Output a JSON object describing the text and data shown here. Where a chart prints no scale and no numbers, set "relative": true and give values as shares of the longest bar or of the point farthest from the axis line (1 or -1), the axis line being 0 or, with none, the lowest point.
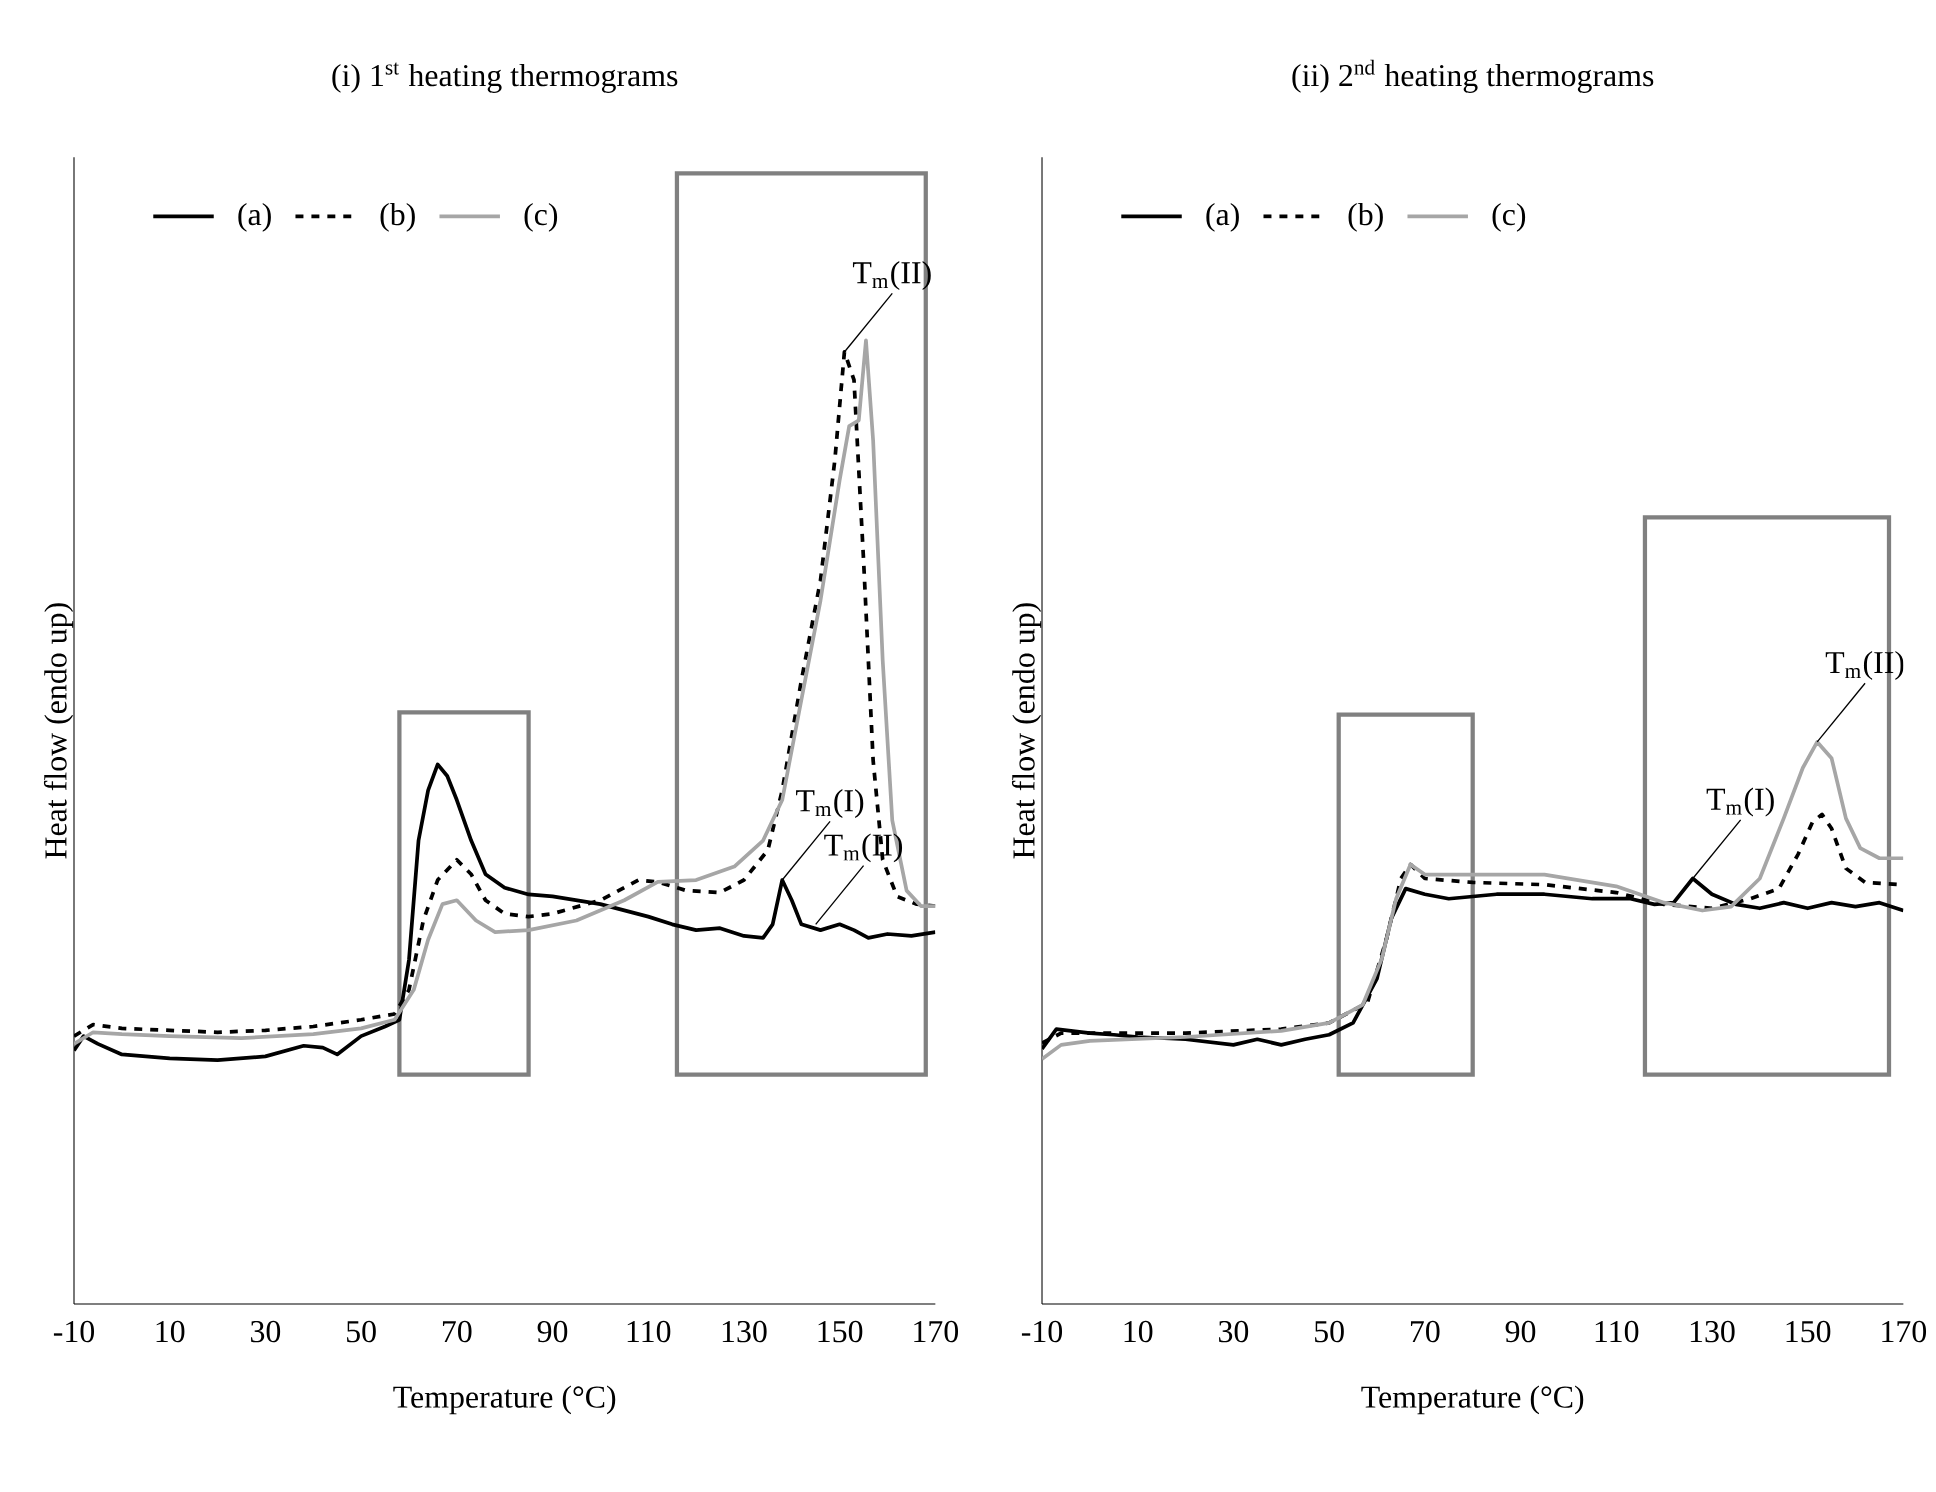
{
  "chart_data": [
    {
      "type": "line",
      "title": "(i) 1$^{st}$ heating thermograms",
      "xlabel": "Temperature (°C)",
      "ylabel": "Heat flow (endo up)",
      "relative": true,
      "xlim": [
        -10,
        170
      ],
      "xticks": [
        -10,
        10,
        30,
        50,
        70,
        90,
        110,
        130,
        150,
        170
      ],
      "legend": "top left",
      "grid": false,
      "series": [
        {
          "name": "(a)",
          "color": "#000000",
          "line_style": "solid",
          "x": [
            -10,
            -8,
            -5,
            0,
            10,
            20,
            30,
            38,
            42,
            45,
            50,
            55,
            58,
            60,
            62,
            64,
            66,
            68,
            70,
            73,
            76,
            80,
            85,
            90,
            100,
            110,
            115,
            120,
            125,
            130,
            134,
            136,
            138,
            140,
            142,
            146,
            150,
            153,
            156,
            160,
            165,
            170
          ],
          "values": [
            0.263,
            0.278,
            0.27,
            0.259,
            0.255,
            0.253,
            0.257,
            0.268,
            0.266,
            0.259,
            0.278,
            0.288,
            0.295,
            0.357,
            0.481,
            0.533,
            0.56,
            0.548,
            0.523,
            0.481,
            0.446,
            0.432,
            0.425,
            0.423,
            0.415,
            0.402,
            0.394,
            0.388,
            0.39,
            0.382,
            0.38,
            0.394,
            0.44,
            0.419,
            0.394,
            0.388,
            0.394,
            0.388,
            0.38,
            0.384,
            0.382,
            0.386
          ]
        },
        {
          "name": "(b)",
          "color": "#000000",
          "line_style": "dashed",
          "x": [
            -10,
            -6,
            0,
            10,
            20,
            30,
            40,
            50,
            57,
            60,
            63,
            66,
            70,
            73,
            76,
            80,
            85,
            90,
            100,
            108,
            112,
            118,
            125,
            130,
            135,
            138,
            142,
            146,
            149,
            151,
            153,
            155,
            157,
            159,
            162,
            166,
            170
          ],
          "values": [
            0.278,
            0.29,
            0.286,
            0.284,
            0.282,
            0.284,
            0.288,
            0.295,
            0.301,
            0.326,
            0.398,
            0.44,
            0.461,
            0.446,
            0.419,
            0.405,
            0.402,
            0.405,
            0.419,
            0.44,
            0.438,
            0.429,
            0.427,
            0.44,
            0.471,
            0.533,
            0.647,
            0.751,
            0.876,
            0.988,
            0.959,
            0.772,
            0.564,
            0.461,
            0.423,
            0.415,
            0.413
          ]
        },
        {
          "name": "(c)",
          "color": "#a6a6a6",
          "line_style": "solid",
          "x": [
            -10,
            -6,
            0,
            10,
            25,
            40,
            50,
            57,
            61,
            64,
            67,
            70,
            74,
            78,
            85,
            95,
            105,
            112,
            120,
            128,
            134,
            138,
            142,
            146,
            150,
            152,
            154,
            155.5,
            157,
            159,
            161,
            164,
            167,
            170
          ],
          "values": [
            0.27,
            0.282,
            0.28,
            0.278,
            0.276,
            0.28,
            0.286,
            0.295,
            0.326,
            0.378,
            0.415,
            0.419,
            0.398,
            0.386,
            0.388,
            0.398,
            0.419,
            0.438,
            0.44,
            0.454,
            0.481,
            0.523,
            0.627,
            0.73,
            0.855,
            0.911,
            0.917,
            1.0,
            0.896,
            0.668,
            0.502,
            0.429,
            0.413,
            0.413
          ]
        }
      ],
      "annotations": [
        {
          "text": "T$_{m}$(II)",
          "x": 151,
          "y": 0.988
        },
        {
          "text": "T$_{m}$(I)",
          "x": 138,
          "y": 0.44
        },
        {
          "text": "T$_{m}$(II)",
          "x": 145,
          "y": 0.394
        }
      ]
    },
    {
      "type": "line",
      "title": "(ii) 2$^{nd}$ heating thermograms",
      "xlabel": "Temperature (°C)",
      "ylabel": "Heat flow (endo up)",
      "relative": true,
      "xlim": [
        -10,
        170
      ],
      "xticks": [
        -10,
        10,
        30,
        50,
        70,
        90,
        110,
        130,
        150,
        170
      ],
      "legend": "top left",
      "grid": false,
      "series": [
        {
          "name": "(a)",
          "color": "#000000",
          "line_style": "solid",
          "x": [
            -10,
            -7,
            0,
            5,
            10,
            20,
            30,
            35,
            40,
            45,
            50,
            55,
            60,
            63,
            66,
            70,
            75,
            85,
            95,
            105,
            113,
            118,
            122,
            126,
            130,
            135,
            140,
            145,
            150,
            155,
            160,
            165,
            170
          ],
          "values": [
            0.454,
            0.489,
            0.482,
            0.479,
            0.475,
            0.471,
            0.461,
            0.471,
            0.461,
            0.471,
            0.479,
            0.5,
            0.579,
            0.686,
            0.739,
            0.729,
            0.721,
            0.729,
            0.729,
            0.721,
            0.721,
            0.711,
            0.714,
            0.757,
            0.729,
            0.711,
            0.704,
            0.714,
            0.704,
            0.714,
            0.707,
            0.714,
            0.7
          ]
        },
        {
          "name": "(b)",
          "color": "#000000",
          "line_style": "dashed",
          "x": [
            -10,
            -6,
            0,
            20,
            40,
            50,
            58,
            62,
            65,
            67,
            70,
            80,
            95,
            110,
            120,
            130,
            138,
            144,
            148,
            151,
            153,
            155,
            158,
            162,
            170
          ],
          "values": [
            0.464,
            0.482,
            0.482,
            0.482,
            0.489,
            0.5,
            0.536,
            0.65,
            0.757,
            0.782,
            0.757,
            0.75,
            0.746,
            0.732,
            0.711,
            0.704,
            0.721,
            0.739,
            0.8,
            0.857,
            0.871,
            0.846,
            0.775,
            0.75,
            0.746
          ]
        },
        {
          "name": "(c)",
          "color": "#a6a6a6",
          "line_style": "solid",
          "x": [
            -10,
            -6,
            0,
            20,
            40,
            50,
            57,
            61,
            64,
            67,
            70,
            80,
            95,
            110,
            120,
            128,
            134,
            140,
            145,
            149,
            152,
            155,
            158,
            161,
            165,
            170
          ],
          "values": [
            0.436,
            0.461,
            0.468,
            0.475,
            0.486,
            0.5,
            0.532,
            0.614,
            0.721,
            0.782,
            0.764,
            0.764,
            0.764,
            0.743,
            0.714,
            0.7,
            0.707,
            0.757,
            0.864,
            0.954,
            1.0,
            0.971,
            0.864,
            0.811,
            0.793,
            0.793
          ]
        }
      ],
      "annotations": [
        {
          "text": "T$_{m}$(I)",
          "x": 126,
          "y": 0.757
        },
        {
          "text": "T$_{m}$(II)",
          "x": 152,
          "y": 1.0
        }
      ]
    }
  ]
}
